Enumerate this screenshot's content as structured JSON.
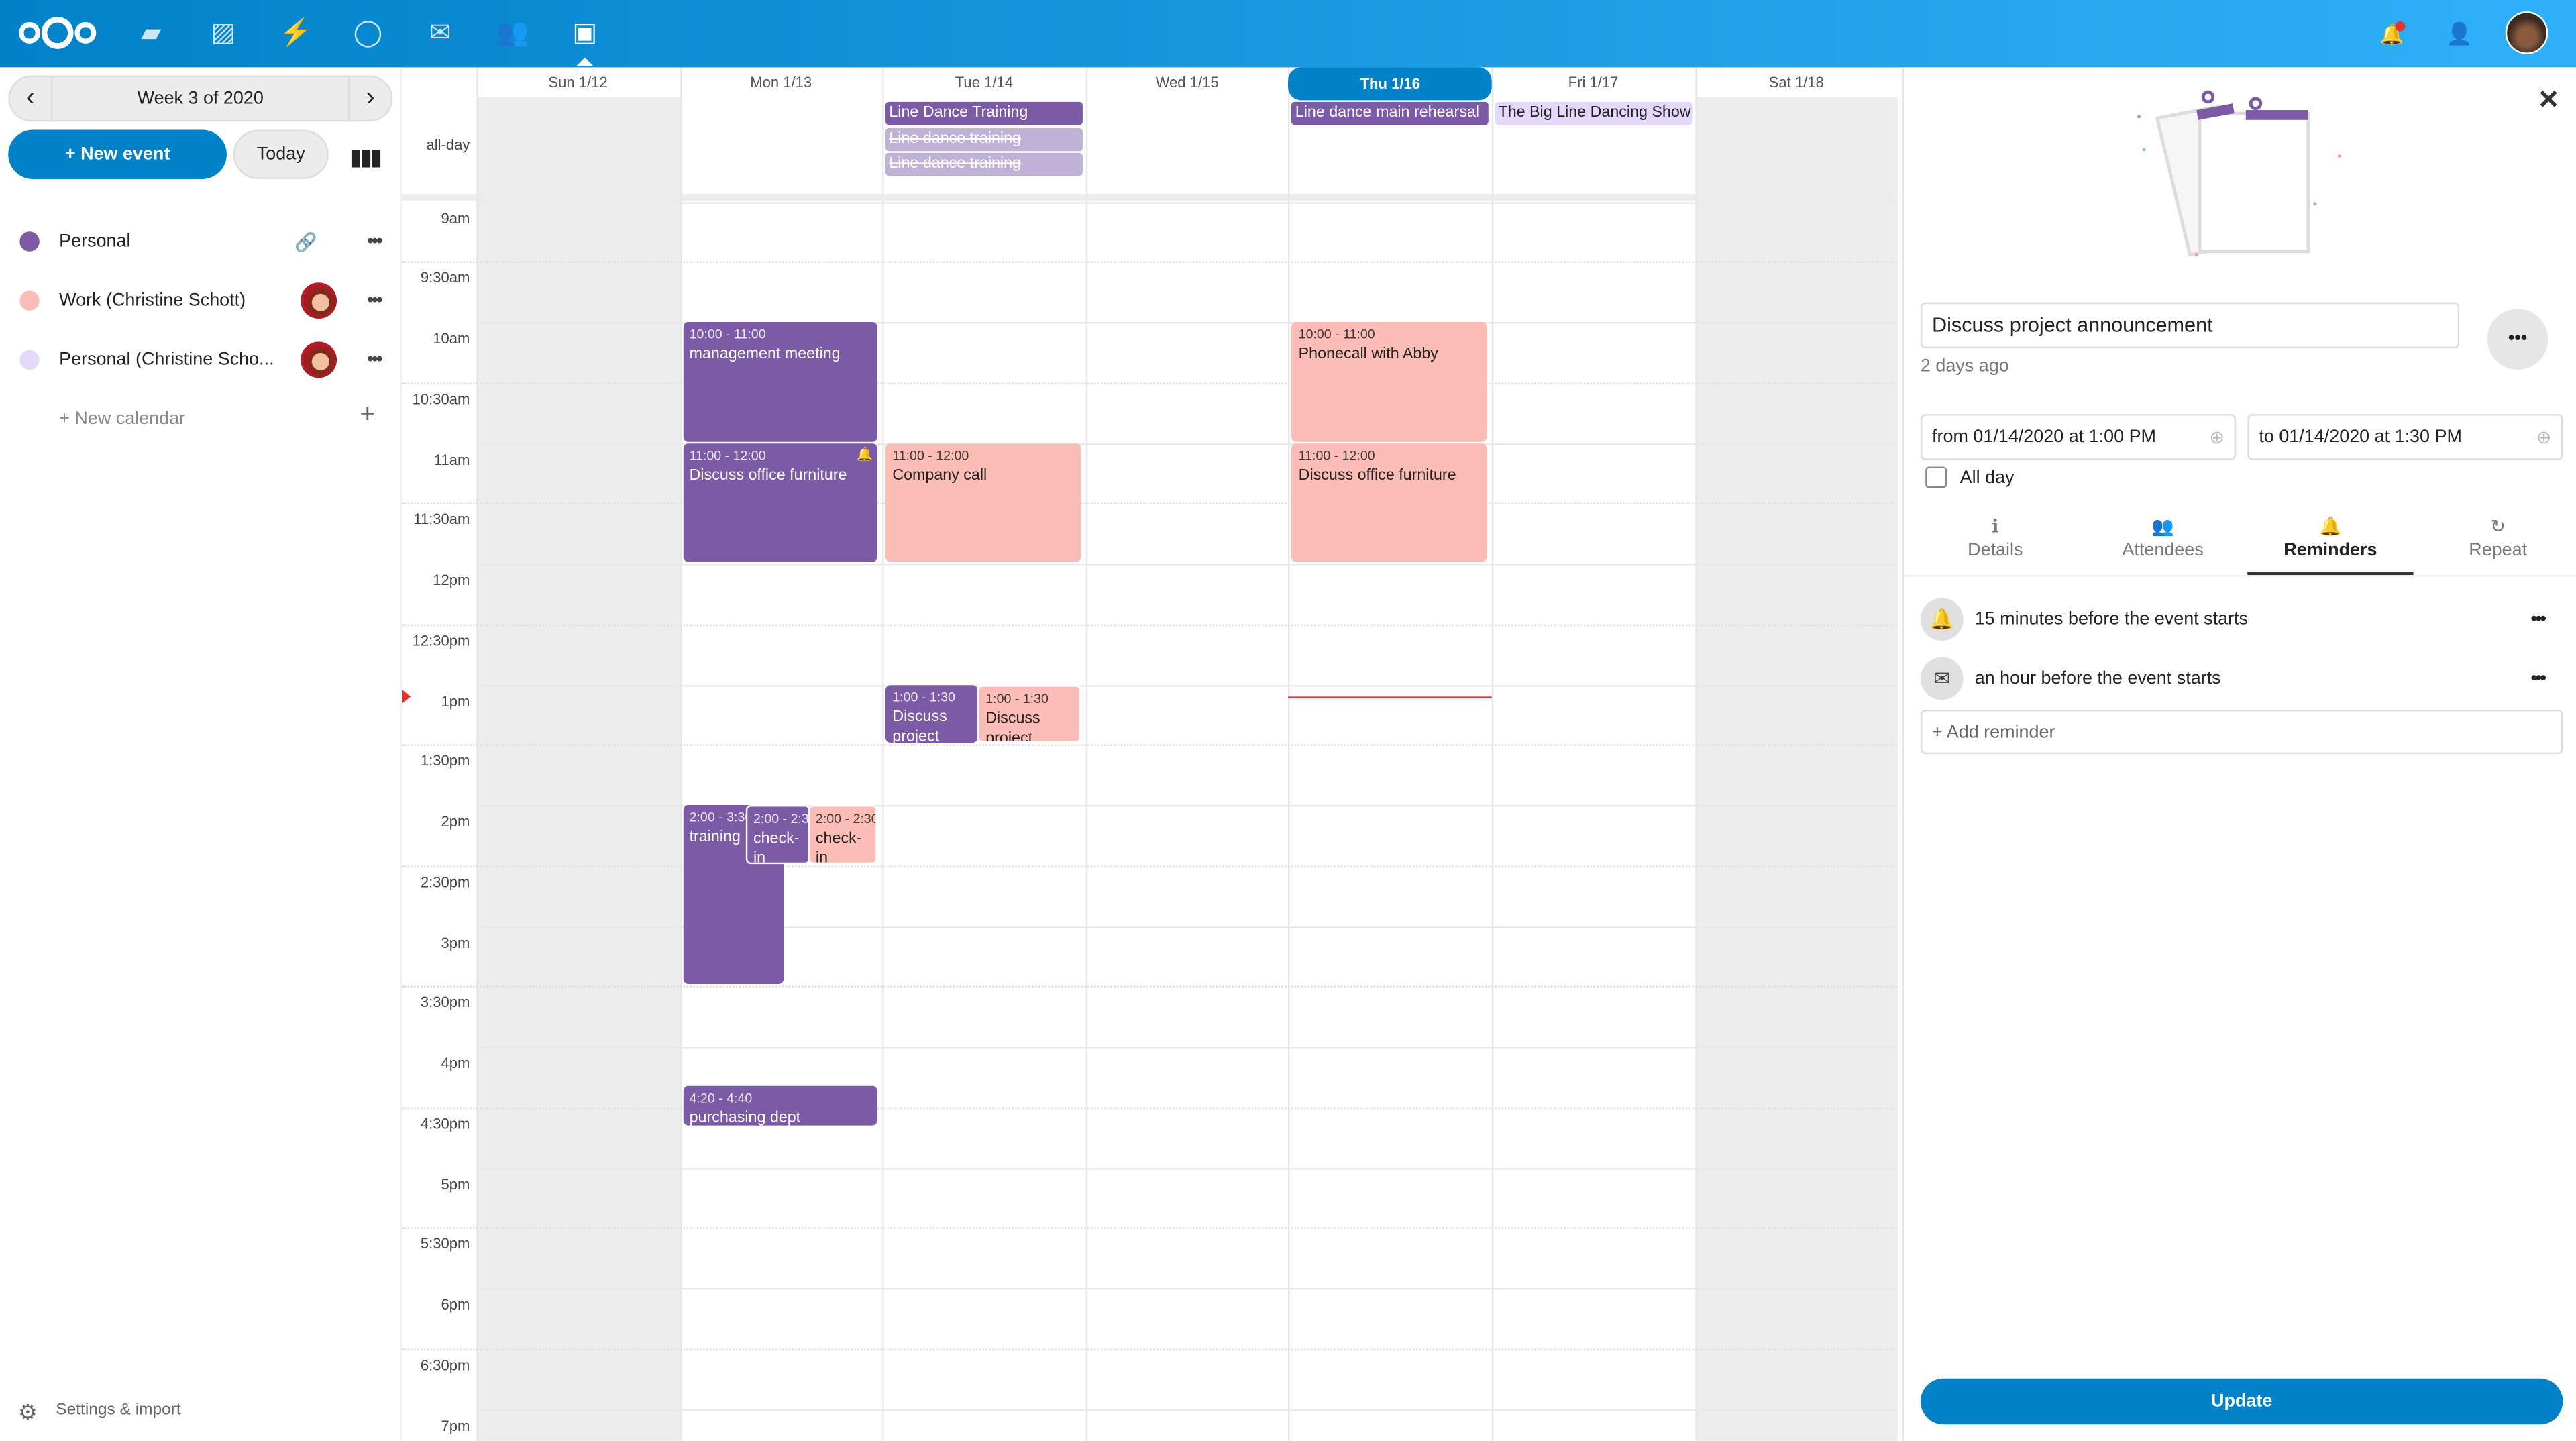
{
  "header": {
    "apps": [
      "files-icon",
      "photos-icon",
      "activity-icon",
      "talk-icon",
      "mail-icon",
      "contacts-icon",
      "calendar-icon"
    ],
    "right": [
      "notifications-icon",
      "contacts-menu-icon",
      "user-avatar"
    ],
    "colors": {
      "brand": "#0082c9",
      "notification": "#e9322d"
    }
  },
  "sidebar": {
    "week_label": "Week 3 of 2020",
    "new_event": "+ New event",
    "today": "Today",
    "calendars": [
      {
        "name": "Personal",
        "color": "#7b5aa6",
        "shared": false
      },
      {
        "name": "Work (Christine Schott)",
        "color": "#fcbdb6",
        "shared": true
      },
      {
        "name": "Personal (Christine Scho...",
        "color": "#e5d9fb",
        "shared": true
      }
    ],
    "new_calendar": "+ New calendar",
    "settings": "Settings & import"
  },
  "calendar": {
    "days": [
      "Sun 1/12",
      "Mon 1/13",
      "Tue 1/14",
      "Wed 1/15",
      "Thu 1/16",
      "Fri 1/17",
      "Sat 1/18"
    ],
    "today_index": 4,
    "allday_label": "all-day",
    "times": [
      "9am",
      "9:30am",
      "10am",
      "10:30am",
      "11am",
      "11:30am",
      "12pm",
      "12:30pm",
      "1pm",
      "1:30pm",
      "2pm",
      "2:30pm",
      "3pm",
      "3:30pm",
      "4pm",
      "4:30pm",
      "5pm",
      "5:30pm",
      "6pm",
      "6:30pm",
      "7pm"
    ],
    "allday_events": [
      {
        "day": 2,
        "title": "Line Dance Training",
        "color": "#7b5aa6",
        "text": "#fff",
        "struck": false
      },
      {
        "day": 2,
        "title": "Line dance training",
        "color": "#c0b1d6",
        "text": "#fff",
        "struck": true
      },
      {
        "day": 2,
        "title": "Line dance training",
        "color": "#c0b1d6",
        "text": "#fff",
        "struck": true
      },
      {
        "day": 4,
        "title": "Line dance main rehearsal",
        "color": "#7b5aa6",
        "text": "#fff",
        "struck": false
      },
      {
        "day": 5,
        "title": "The Big Line Dancing Show",
        "color": "#e5d9fb",
        "text": "#222",
        "struck": false
      }
    ],
    "events": [
      {
        "day": 1,
        "start": 10,
        "end": 11,
        "time": "10:00 - 11:00",
        "title": "management meeting",
        "color": "#7b5aa6",
        "text": "#fff"
      },
      {
        "day": 1,
        "start": 11,
        "end": 12,
        "time": "11:00 - 12:00",
        "title": "Discuss office furniture",
        "color": "#7b5aa6",
        "text": "#fff",
        "bell": true
      },
      {
        "day": 2,
        "start": 11,
        "end": 12,
        "time": "11:00 - 12:00",
        "title": "Company call",
        "color": "#fcbdb6",
        "text": "#222"
      },
      {
        "day": 4,
        "start": 10,
        "end": 11,
        "time": "10:00 - 11:00",
        "title": "Phonecall with Abby",
        "color": "#fcbdb6",
        "text": "#222"
      },
      {
        "day": 4,
        "start": 11,
        "end": 12,
        "time": "11:00 - 12:00",
        "title": "Discuss office furniture",
        "color": "#fcbdb6",
        "text": "#222"
      },
      {
        "day": 2,
        "start": 13,
        "end": 13.5,
        "time": "1:00 - 1:30",
        "title": "Discuss project announcement",
        "color": "#7b5aa6",
        "text": "#fff"
      },
      {
        "day": 2,
        "start": 13,
        "end": 13.5,
        "time": "1:00 - 1:30",
        "title": "Discuss project",
        "color": "#fcbdb6",
        "text": "#222"
      },
      {
        "day": 1,
        "start": 14,
        "end": 15.5,
        "time": "2:00 - 3:30",
        "title": "training",
        "color": "#7b5aa6",
        "text": "#fff"
      },
      {
        "day": 1,
        "start": 14,
        "end": 14.5,
        "time": "2:00 - 2:30",
        "title": "check-in",
        "color": "#7b5aa6",
        "text": "#fff"
      },
      {
        "day": 1,
        "start": 14,
        "end": 14.5,
        "time": "2:00 - 2:30",
        "title": "check-in",
        "color": "#fcbdb6",
        "text": "#222"
      },
      {
        "day": 1,
        "start": 16.333,
        "end": 16.667,
        "time": "4:20 - 4:40",
        "title": "purchasing dept",
        "color": "#7b5aa6",
        "text": "#fff"
      }
    ],
    "now": {
      "day": 4,
      "hour": 13.1
    }
  },
  "panel": {
    "title": "Discuss project announcement",
    "modified": "2 days ago",
    "from": "from 01/14/2020 at 1:00 PM",
    "to": "to 01/14/2020 at 1:30 PM",
    "allday_label": "All day",
    "allday_checked": false,
    "tabs": [
      {
        "label": "Details",
        "icon": "info-icon"
      },
      {
        "label": "Attendees",
        "icon": "attendees-icon"
      },
      {
        "label": "Reminders",
        "icon": "bell-icon",
        "active": true
      },
      {
        "label": "Repeat",
        "icon": "repeat-icon"
      }
    ],
    "reminders": [
      {
        "text": "15 minutes before the event starts",
        "icon": "bell-icon"
      },
      {
        "text": "an hour before the event starts",
        "icon": "mail-icon"
      }
    ],
    "add_reminder": "+ Add reminder",
    "update": "Update"
  }
}
